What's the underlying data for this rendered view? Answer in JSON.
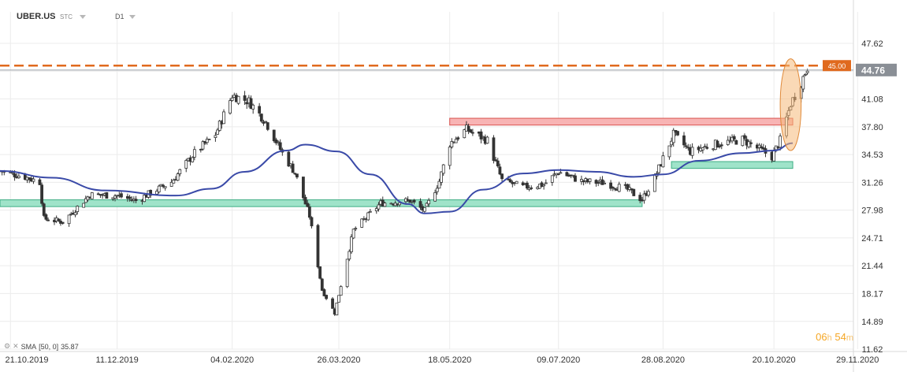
{
  "header": {
    "symbol": "UBER.US",
    "instrument_type": "STC",
    "timeframe": "D1"
  },
  "indicator": {
    "label": "SMA",
    "params": "[50, 0]",
    "value": "35.87"
  },
  "countdown": {
    "hours": "06",
    "hours_unit": "h",
    "minutes": "54",
    "minutes_unit": "m"
  },
  "colors": {
    "up_candle": "#ffffff",
    "down_candle": "#333333",
    "candle_outline": "#333333",
    "sma": "#3a4aa8",
    "resistance_line": "#e06a1e",
    "price_tag": "#8a8f96",
    "level_tag": "#e06a1e",
    "support_zone": "#9fe3c9",
    "resistance_zone": "#f8b4b4",
    "highlight": "#f5b97a"
  },
  "chart_data": {
    "type": "candlestick",
    "y_axis": {
      "range": [
        11.62,
        47.62
      ],
      "ticks": [
        "47.62",
        "44.35",
        "41.08",
        "37.80",
        "34.53",
        "31.26",
        "27.98",
        "24.71",
        "21.44",
        "18.17",
        "14.89",
        "11.62"
      ]
    },
    "x_axis": {
      "range": [
        "2019-10-16",
        "2020-11-27"
      ],
      "ticks": [
        "21.10.2019",
        "11.12.2019",
        "04.02.2020",
        "26.03.2020",
        "18.05.2020",
        "09.07.2020",
        "28.08.2020",
        "20.10.2020",
        "29.11.2020"
      ]
    },
    "last_price": "44.76",
    "horizontal_level": {
      "value": 45.0,
      "label": "45.00",
      "style": "dashed"
    },
    "zones": [
      {
        "kind": "support",
        "y": [
          28.4,
          29.2
        ],
        "x": [
          "2019-10-16",
          "2020-08-18"
        ]
      },
      {
        "kind": "resistance",
        "y": [
          38.0,
          38.8
        ],
        "x": [
          "2020-05-18",
          "2020-10-29"
        ]
      },
      {
        "kind": "support",
        "y": [
          32.9,
          33.7
        ],
        "x": [
          "2020-09-01",
          "2020-10-29"
        ]
      }
    ],
    "highlight_ellipse": {
      "x": [
        "2020-10-23",
        "2020-11-02"
      ],
      "y": [
        35.0,
        45.8
      ]
    },
    "series": [
      {
        "name": "UBER.US D1",
        "kind": "ohlc-path",
        "x": [
          "2019-10-16",
          "2019-10-28",
          "2019-11-04",
          "2019-11-06",
          "2019-11-15",
          "2019-11-28",
          "2019-12-11",
          "2019-12-20",
          "2020-01-06",
          "2020-01-17",
          "2020-01-27",
          "2020-02-04",
          "2020-02-12",
          "2020-02-20",
          "2020-02-28",
          "2020-03-05",
          "2020-03-12",
          "2020-03-18",
          "2020-03-24",
          "2020-04-02",
          "2020-04-15",
          "2020-04-29",
          "2020-05-06",
          "2020-05-13",
          "2020-05-18",
          "2020-05-26",
          "2020-06-05",
          "2020-06-12",
          "2020-06-22",
          "2020-07-02",
          "2020-07-09",
          "2020-07-20",
          "2020-07-31",
          "2020-08-11",
          "2020-08-18",
          "2020-08-24",
          "2020-09-02",
          "2020-09-10",
          "2020-09-21",
          "2020-10-05",
          "2020-10-19",
          "2020-10-23",
          "2020-10-28",
          "2020-11-02",
          "2020-11-05"
        ],
        "close": [
          32.6,
          31.9,
          31.3,
          27.0,
          26.6,
          29.8,
          29.7,
          29.1,
          31.3,
          34.7,
          36.9,
          41.5,
          40.8,
          38.4,
          34.7,
          32.4,
          27.3,
          18.6,
          15.9,
          25.6,
          28.8,
          29.1,
          27.9,
          31.4,
          35.8,
          37.5,
          36.2,
          31.5,
          30.7,
          31.0,
          32.5,
          31.4,
          31.2,
          30.4,
          29.2,
          31.8,
          36.9,
          34.9,
          35.7,
          36.3,
          34.3,
          36.2,
          40.5,
          43.0,
          44.8
        ]
      },
      {
        "name": "SMA [50, 0]",
        "kind": "line",
        "x": [
          "2019-10-16",
          "2019-11-10",
          "2019-12-05",
          "2020-01-08",
          "2020-01-25",
          "2020-02-10",
          "2020-03-01",
          "2020-03-10",
          "2020-03-25",
          "2020-04-10",
          "2020-04-28",
          "2020-05-06",
          "2020-05-18",
          "2020-06-03",
          "2020-06-22",
          "2020-07-09",
          "2020-07-27",
          "2020-08-14",
          "2020-08-28",
          "2020-09-14",
          "2020-10-05",
          "2020-10-20",
          "2020-10-29"
        ],
        "y": [
          32.6,
          31.8,
          30.3,
          29.7,
          30.5,
          32.5,
          35.0,
          35.7,
          34.9,
          32.2,
          28.7,
          27.6,
          27.8,
          30.4,
          32.3,
          32.7,
          32.5,
          31.9,
          32.2,
          33.8,
          34.7,
          35.0,
          35.87
        ]
      }
    ]
  }
}
